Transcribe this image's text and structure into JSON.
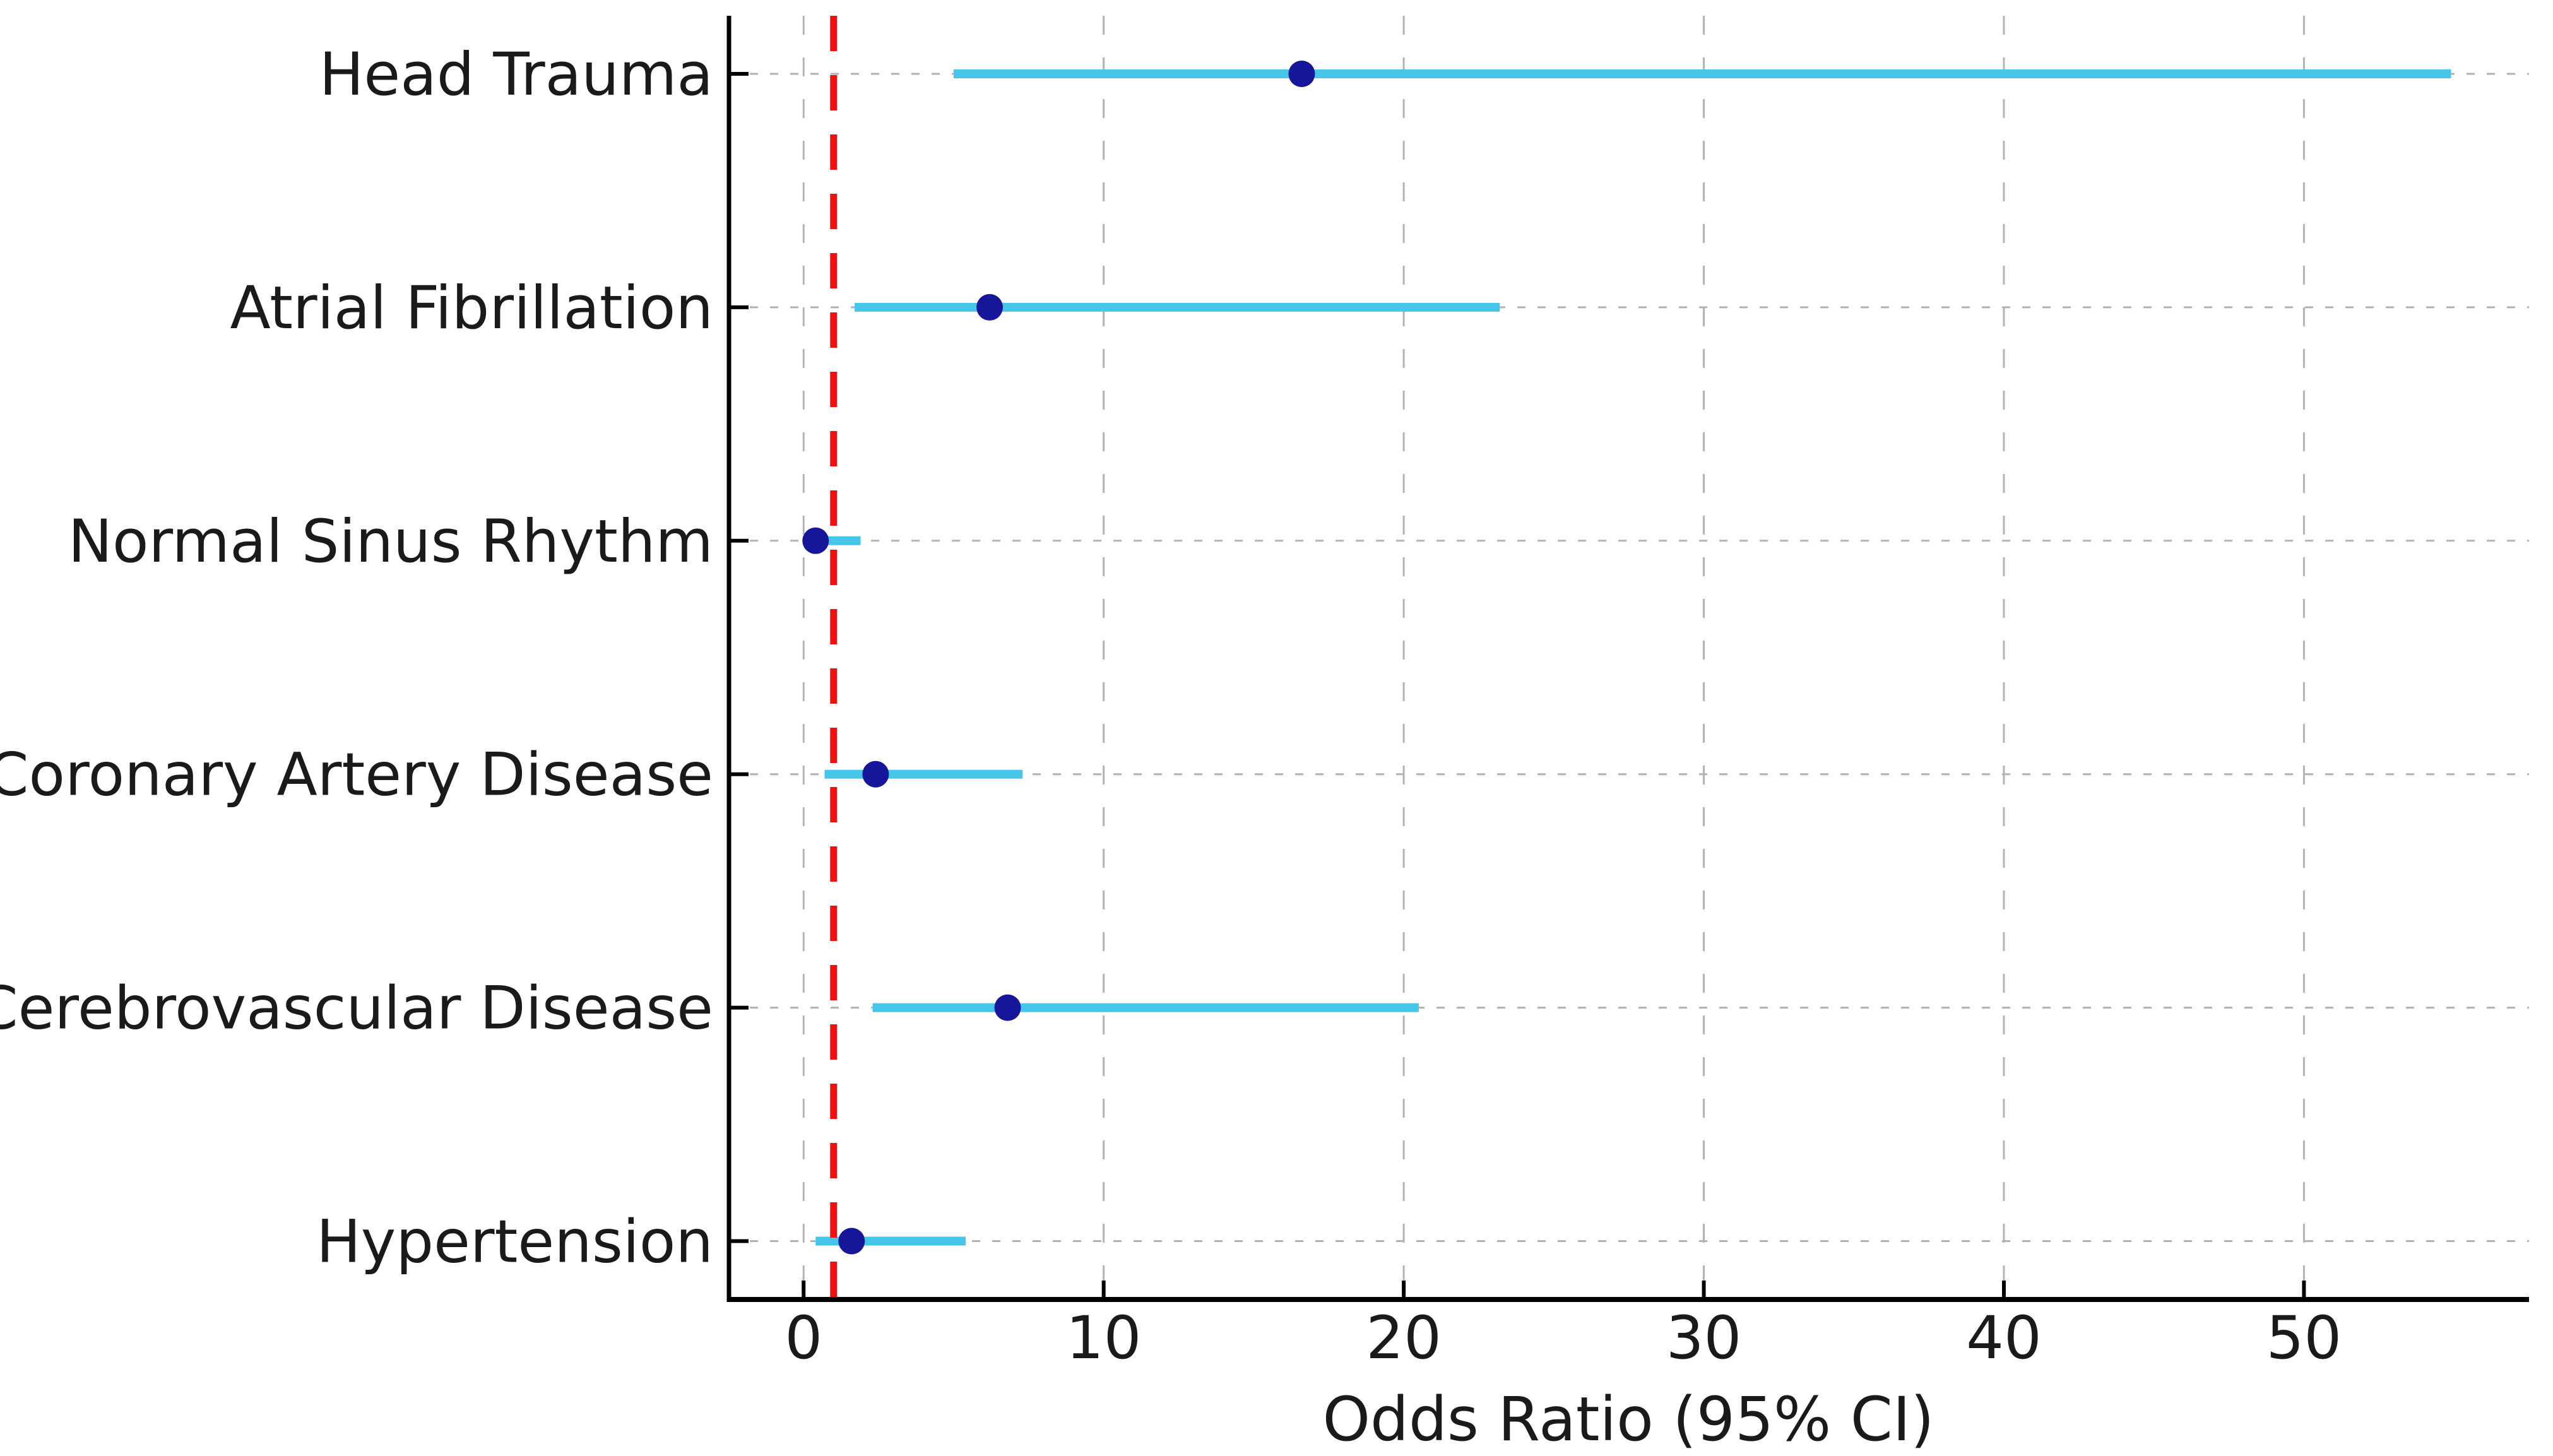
{
  "figure": {
    "background_color": "#ffffff"
  },
  "chart_data": {
    "type": "scatter",
    "subtype": "forest-plot-odds-ratio",
    "title": "",
    "xlabel": "Odds Ratio (95% CI)",
    "ylabel": "",
    "legend": "none",
    "grid": "dashed gridlines on both axes",
    "x_ticks": [
      0,
      10,
      20,
      30,
      40,
      50
    ],
    "xlim": [
      -2.55,
      57.5
    ],
    "reference_line": {
      "x": 1,
      "linestyle": "dashed",
      "color": "#f40d0d"
    },
    "rows": [
      {
        "label": "Head Trauma",
        "or": 16.6,
        "ci_low": 5.0,
        "ci_high": 54.9
      },
      {
        "label": "Atrial Fibrillation",
        "or": 6.2,
        "ci_low": 1.7,
        "ci_high": 23.2
      },
      {
        "label": "Normal Sinus Rhythm",
        "or": 0.4,
        "ci_low": 0.1,
        "ci_high": 1.9
      },
      {
        "label": "Coronary Artery Disease",
        "or": 2.4,
        "ci_low": 0.7,
        "ci_high": 7.3
      },
      {
        "label": "Cerebrovascular Disease",
        "or": 6.8,
        "ci_low": 2.3,
        "ci_high": 20.5
      },
      {
        "label": "Hypertension",
        "or": 1.6,
        "ci_low": 0.4,
        "ci_high": 5.4
      }
    ],
    "colors": {
      "ci_line": "#46c6e8",
      "point_marker": "#16169a",
      "reference_line": "#f40d0d",
      "gridline": "#b3b3b3",
      "axis": "#000000",
      "text": "#1a1a1a"
    }
  }
}
